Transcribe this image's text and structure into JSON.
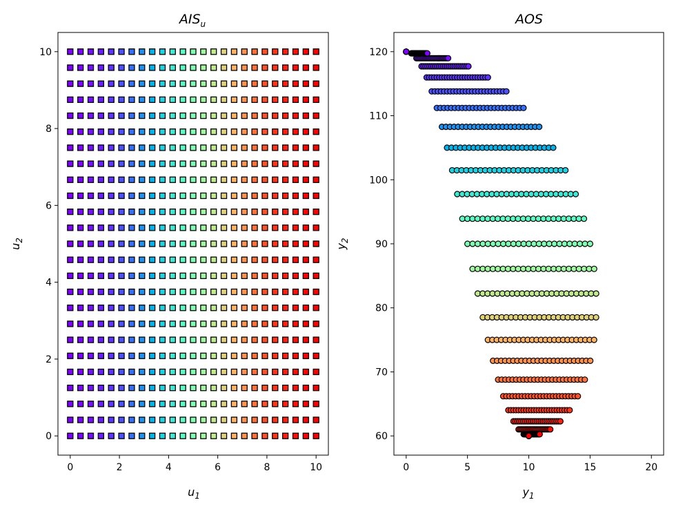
{
  "chart_data": [
    {
      "type": "scatter",
      "marker": "square",
      "title_base": "AIS",
      "title_sub": "u",
      "xlabel_base": "u",
      "xlabel_sub": "1",
      "ylabel_base": "u",
      "ylabel_sub": "2",
      "xlim": [
        -0.5,
        10.5
      ],
      "ylim": [
        -0.5,
        10.5
      ],
      "xticks": [
        0,
        2,
        4,
        6,
        8,
        10
      ],
      "yticks": [
        0,
        2,
        4,
        6,
        8,
        10
      ],
      "grid": false,
      "points": {
        "grid_x": [
          0,
          10
        ],
        "grid_y": [
          0,
          10
        ],
        "count_per_axis": 25
      },
      "colormap": "rainbow"
    },
    {
      "type": "scatter",
      "marker": "circle",
      "title": "AOS",
      "xlabel_base": "y",
      "xlabel_sub": "1",
      "ylabel_base": "y",
      "ylabel_sub": "2",
      "xlim": [
        -1,
        21
      ],
      "ylim": [
        57,
        123
      ],
      "xticks": [
        0,
        5,
        10,
        15,
        20
      ],
      "yticks": [
        60,
        70,
        80,
        90,
        100,
        110,
        120
      ],
      "grid": false,
      "relation": {
        "y1": "u1 + u2*sin(theta)",
        "y2": "90 + 30*cos(theta)",
        "theta": "pi*u1/10"
      },
      "colormap": "rainbow"
    }
  ],
  "colors": {
    "axis": "#000000",
    "marker_edge": "#000000",
    "background": "#ffffff"
  }
}
